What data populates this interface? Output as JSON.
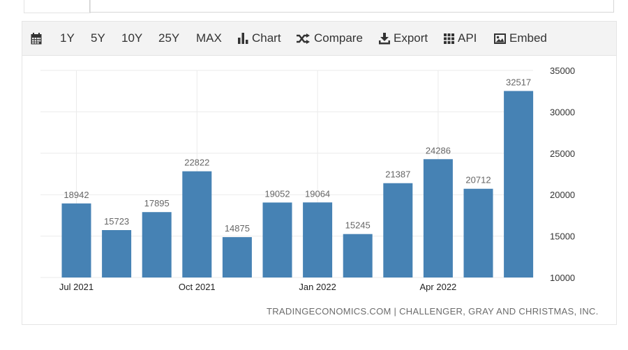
{
  "toolbar": {
    "items": [
      {
        "key": "calendar",
        "label": "",
        "icon": "calendar-icon"
      },
      {
        "key": "1y",
        "label": "1Y"
      },
      {
        "key": "5y",
        "label": "5Y"
      },
      {
        "key": "10y",
        "label": "10Y"
      },
      {
        "key": "25y",
        "label": "25Y"
      },
      {
        "key": "max",
        "label": "MAX"
      },
      {
        "key": "chart",
        "label": "Chart",
        "icon": "bar-chart-icon"
      },
      {
        "key": "compare",
        "label": "Compare",
        "icon": "shuffle-icon"
      },
      {
        "key": "export",
        "label": "Export",
        "icon": "download-icon"
      },
      {
        "key": "api",
        "label": "API",
        "icon": "grid-icon"
      },
      {
        "key": "embed",
        "label": "Embed",
        "icon": "image-icon"
      }
    ]
  },
  "chart_data": {
    "type": "bar",
    "categories": [
      "2021-07",
      "2021-08",
      "2021-09",
      "2021-10",
      "2021-11",
      "2021-12",
      "2022-01",
      "2022-02",
      "2022-03",
      "2022-04",
      "2022-05",
      "2022-06"
    ],
    "x_tick_labels": [
      {
        "category": "2021-07",
        "label": "Jul 2021"
      },
      {
        "category": "2021-10",
        "label": "Oct 2021"
      },
      {
        "category": "2022-01",
        "label": "Jan 2022"
      },
      {
        "category": "2022-04",
        "label": "Apr 2022"
      }
    ],
    "values": [
      18942,
      15723,
      17895,
      22822,
      14875,
      19052,
      19064,
      15245,
      21387,
      24286,
      20712,
      32517
    ],
    "data_labels": [
      "18942",
      "15723",
      "17895",
      "22822",
      "14875",
      "19052",
      "19064",
      "15245",
      "21387",
      "24286",
      "20712",
      "32517"
    ],
    "ylim": [
      10000,
      35000
    ],
    "y_ticks": [
      10000,
      15000,
      20000,
      25000,
      30000,
      35000
    ],
    "y_tick_labels": [
      "10000",
      "15000",
      "20000",
      "25000",
      "30000",
      "35000"
    ],
    "y_axis_position": "right",
    "title": "",
    "xlabel": "",
    "ylabel": "",
    "grid": true,
    "bar_color": "#4682b4",
    "grid_color": "#ebebeb"
  },
  "footer": {
    "credit": "TRADINGECONOMICS.COM | CHALLENGER, GRAY AND CHRISTMAS, INC."
  }
}
